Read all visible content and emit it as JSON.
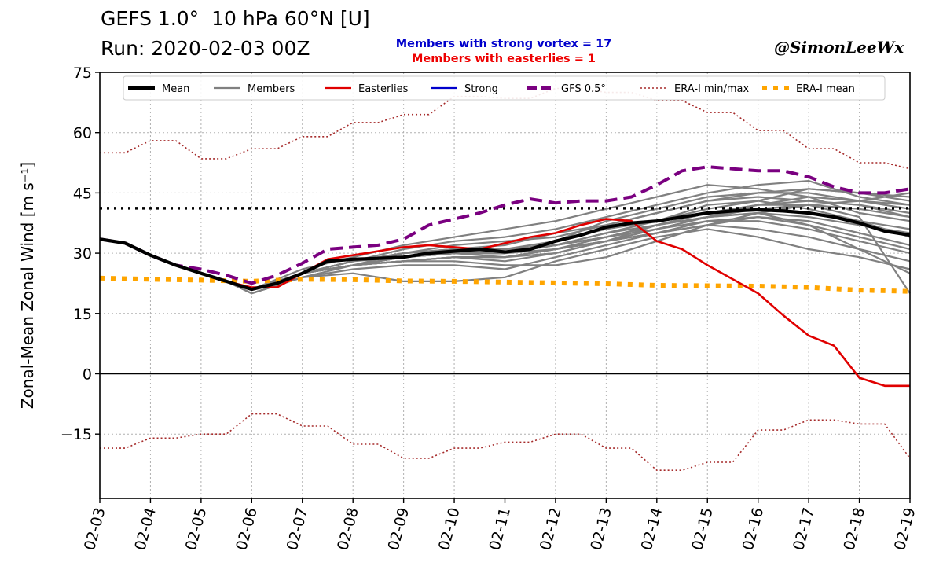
{
  "header": {
    "title_line1": "GEFS 1.0°  10 hPa 60°N [U]",
    "title_line2": "Run: 2020-02-03 00Z",
    "subtitle_strong": "Members with strong vortex = 17",
    "subtitle_easterlies": "Members with easterlies = 1",
    "credit": "@SimonLeeWx"
  },
  "colors": {
    "mean": "#000000",
    "members": "#808080",
    "easterlies": "#e00000",
    "strong": "#0000cc",
    "gfs": "#7a0080",
    "era_minmax": "#a52a2a",
    "era_mean": "#ffa500",
    "threshold": "#000000"
  },
  "chart_data": {
    "type": "line",
    "xlabel": "",
    "ylabel": "Zonal-Mean Zonal Wind [m s⁻¹]",
    "ylim": [
      -31,
      75
    ],
    "xlim": [
      0,
      16
    ],
    "yticks": [
      -15,
      0,
      15,
      30,
      45,
      60,
      75
    ],
    "ytick_labels": [
      "−15",
      "0",
      "15",
      "30",
      "45",
      "60",
      "75"
    ],
    "categories": [
      "02-03",
      "02-04",
      "02-05",
      "02-06",
      "02-07",
      "02-08",
      "02-09",
      "02-10",
      "02-11",
      "02-12",
      "02-13",
      "02-14",
      "02-15",
      "02-16",
      "02-17",
      "02-18",
      "02-19"
    ],
    "grid": true,
    "legend_position": "top",
    "threshold": 41.2,
    "legend": [
      {
        "key": "mean",
        "label": "Mean",
        "style": "solid-thick"
      },
      {
        "key": "members",
        "label": "Members",
        "style": "solid"
      },
      {
        "key": "easterlies",
        "label": "Easterlies",
        "style": "solid"
      },
      {
        "key": "strong",
        "label": "Strong",
        "style": "solid"
      },
      {
        "key": "gfs",
        "label": "GFS 0.5°",
        "style": "dashed"
      },
      {
        "key": "era_minmax",
        "label": "ERA-I min/max",
        "style": "dotted"
      },
      {
        "key": "era_mean",
        "label": "ERA-I mean",
        "style": "dotted-thick"
      }
    ],
    "series": [
      {
        "name": "Mean",
        "key": "mean",
        "x": [
          0,
          0.5,
          1,
          1.5,
          2,
          2.5,
          3,
          3.5,
          4,
          4.5,
          5,
          5.5,
          6,
          6.5,
          7,
          7.5,
          8,
          8.5,
          9,
          9.5,
          10,
          10.5,
          11,
          11.5,
          12,
          12.5,
          13,
          13.5,
          14,
          14.5,
          15,
          15.5,
          16
        ],
        "values": [
          33.5,
          32.5,
          29.5,
          27.0,
          25.0,
          23.0,
          21.0,
          22.5,
          25.0,
          28.0,
          28.5,
          28.7,
          29.0,
          30.0,
          30.5,
          31.0,
          30.3,
          31.0,
          33.0,
          34.5,
          36.5,
          37.5,
          38.0,
          39.0,
          40.0,
          40.5,
          40.8,
          40.5,
          40.0,
          39.0,
          37.5,
          35.5,
          34.5
        ]
      },
      {
        "name": "Easterlies",
        "key": "easterlies",
        "x": [
          0,
          0.5,
          1,
          1.5,
          2,
          2.5,
          3,
          3.5,
          4,
          4.5,
          5,
          5.5,
          6,
          6.5,
          7,
          7.5,
          8,
          8.5,
          9,
          9.5,
          10,
          10.5,
          11,
          11.5,
          12,
          12.5,
          13,
          13.5,
          14,
          14.5,
          15,
          15.5,
          16
        ],
        "values": [
          33.5,
          32.5,
          29.5,
          27.0,
          25.0,
          23.0,
          21.5,
          21.5,
          25.0,
          28.5,
          29.5,
          30.5,
          31.5,
          32.0,
          31.5,
          31.0,
          32.5,
          34.0,
          35.0,
          37.0,
          38.5,
          38.0,
          33.0,
          31.0,
          27.0,
          23.5,
          20.0,
          14.5,
          9.5,
          7.0,
          -1.0,
          -3.0,
          -3.0
        ]
      },
      {
        "name": "GFS 0.5°",
        "key": "gfs",
        "x": [
          0,
          0.5,
          1,
          1.5,
          2,
          2.5,
          3,
          3.5,
          4,
          4.5,
          5,
          5.5,
          6,
          6.5,
          7,
          7.5,
          8,
          8.5,
          9,
          9.5,
          10,
          10.5,
          11,
          11.5,
          12,
          12.5,
          13,
          13.5,
          14,
          14.5,
          15,
          15.5,
          16
        ],
        "values": [
          33.5,
          32.5,
          29.5,
          27.0,
          26.0,
          24.5,
          22.5,
          24.5,
          27.5,
          31.0,
          31.5,
          32.0,
          33.5,
          37.0,
          38.5,
          40.0,
          42.0,
          43.5,
          42.5,
          43.0,
          43.0,
          44.0,
          47.0,
          50.5,
          51.5,
          51.0,
          50.5,
          50.5,
          49.0,
          46.5,
          45.0,
          45.0,
          46.0
        ]
      },
      {
        "name": "ERA-I max",
        "key": "era_minmax",
        "x": [
          0,
          0.5,
          1,
          1.5,
          2,
          2.5,
          3,
          3.5,
          4,
          4.5,
          5,
          5.5,
          6,
          6.5,
          7,
          7.5,
          8,
          8.5,
          9,
          9.5,
          10,
          10.5,
          11,
          11.5,
          12,
          12.5,
          13,
          13.5,
          14,
          14.5,
          15,
          15.5,
          16
        ],
        "values": [
          55.0,
          55.0,
          58.0,
          58.0,
          53.5,
          53.5,
          56.0,
          56.0,
          59.0,
          59.0,
          62.5,
          62.5,
          64.5,
          64.5,
          69.0,
          69.0,
          68.5,
          68.5,
          71.0,
          71.0,
          70.0,
          70.0,
          68.0,
          68.0,
          65.0,
          65.0,
          60.5,
          60.5,
          56.0,
          56.0,
          52.5,
          52.5,
          51.0
        ]
      },
      {
        "name": "ERA-I min",
        "key": "era_minmax",
        "x": [
          0,
          0.5,
          1,
          1.5,
          2,
          2.5,
          3,
          3.5,
          4,
          4.5,
          5,
          5.5,
          6,
          6.5,
          7,
          7.5,
          8,
          8.5,
          9,
          9.5,
          10,
          10.5,
          11,
          11.5,
          12,
          12.5,
          13,
          13.5,
          14,
          14.5,
          15,
          15.5,
          16
        ],
        "values": [
          -18.5,
          -18.5,
          -16.0,
          -16.0,
          -15.0,
          -15.0,
          -10.0,
          -10.0,
          -13.0,
          -13.0,
          -17.5,
          -17.5,
          -21.0,
          -21.0,
          -18.5,
          -18.5,
          -17.0,
          -17.0,
          -15.0,
          -15.0,
          -18.5,
          -18.5,
          -24.0,
          -24.0,
          -22.0,
          -22.0,
          -14.0,
          -14.0,
          -11.5,
          -11.5,
          -12.5,
          -12.5,
          -21.0
        ]
      },
      {
        "name": "ERA-I mean",
        "key": "era_mean",
        "x": [
          0,
          1,
          2,
          3,
          4,
          5,
          6,
          7,
          8,
          9,
          10,
          11,
          12,
          13,
          14,
          15,
          16
        ],
        "values": [
          23.8,
          23.5,
          23.3,
          23.0,
          23.5,
          23.4,
          23.1,
          23.0,
          22.8,
          22.6,
          22.4,
          22.0,
          21.9,
          21.8,
          21.5,
          20.8,
          20.5
        ]
      }
    ],
    "members": [
      {
        "x": [
          3,
          4,
          5,
          6,
          7,
          8,
          9,
          10,
          11,
          12,
          13,
          14,
          15,
          16
        ],
        "values": [
          21,
          25,
          27,
          29,
          31,
          31,
          33,
          38,
          41,
          44,
          45,
          46,
          45,
          44
        ]
      },
      {
        "x": [
          3,
          4,
          5,
          6,
          7,
          8,
          9,
          10,
          11,
          12,
          13,
          14,
          15,
          16
        ],
        "values": [
          21,
          25,
          28,
          30,
          31,
          30,
          33,
          36,
          38,
          42,
          43,
          41,
          38,
          34
        ]
      },
      {
        "x": [
          3,
          4,
          5,
          6,
          7,
          8,
          9,
          10,
          11,
          12,
          13,
          14,
          15,
          16
        ],
        "values": [
          21,
          25,
          27,
          29,
          30,
          30,
          32,
          35,
          37,
          40,
          41,
          40,
          38,
          36
        ]
      },
      {
        "x": [
          3,
          4,
          5,
          6,
          7,
          8,
          9,
          10,
          11,
          12,
          13,
          14,
          15,
          16
        ],
        "values": [
          20,
          24,
          27,
          28,
          29,
          28,
          30,
          33,
          36,
          38,
          38,
          36,
          33,
          30
        ]
      },
      {
        "x": [
          3,
          4,
          5,
          6,
          7,
          8,
          9,
          10,
          11,
          12,
          13,
          14,
          15,
          16
        ],
        "values": [
          20,
          24,
          26,
          27,
          27,
          26,
          29,
          32,
          35,
          37,
          36,
          34,
          31,
          28
        ]
      },
      {
        "x": [
          3,
          4,
          5,
          6,
          7,
          8,
          9,
          10,
          11,
          12,
          13,
          14,
          15,
          16
        ],
        "values": [
          20,
          24,
          25,
          23,
          23,
          24,
          28,
          31,
          34,
          36,
          34,
          31,
          29,
          26
        ]
      },
      {
        "x": [
          3,
          4,
          5,
          6,
          7,
          8,
          9,
          10,
          11,
          12,
          13,
          14,
          15,
          16
        ],
        "values": [
          21,
          26,
          29,
          32,
          34,
          36,
          38,
          41,
          44,
          47,
          46,
          44,
          40,
          38
        ]
      },
      {
        "x": [
          3,
          4,
          5,
          6,
          7,
          8,
          9,
          10,
          11,
          12,
          13,
          14,
          15,
          16
        ],
        "values": [
          21,
          25,
          28,
          31,
          33,
          34,
          36,
          39,
          42,
          45,
          47,
          48,
          44,
          42
        ]
      },
      {
        "x": [
          3,
          4,
          5,
          6,
          7,
          8,
          9,
          10,
          11,
          12,
          13,
          14,
          15,
          16
        ],
        "values": [
          21,
          25,
          27,
          30,
          31,
          32,
          35,
          37,
          40,
          43,
          44,
          43,
          42,
          40
        ]
      },
      {
        "x": [
          3,
          4,
          5,
          6,
          7,
          8,
          9,
          10,
          11,
          12,
          13,
          14,
          15,
          16
        ],
        "values": [
          21,
          25,
          27,
          28,
          29,
          29,
          31,
          34,
          36,
          39,
          40,
          39,
          37,
          35
        ]
      },
      {
        "x": [
          3,
          4,
          5,
          6,
          7,
          8,
          9,
          10,
          11,
          12,
          13,
          14,
          15,
          16
        ],
        "values": [
          21,
          25,
          27,
          29,
          30,
          29,
          30,
          33,
          35,
          37,
          39,
          38,
          35,
          32
        ]
      },
      {
        "x": [
          3,
          4,
          5,
          6,
          7,
          8,
          9,
          10,
          11,
          12,
          13,
          14,
          15,
          16
        ],
        "values": [
          21,
          25,
          28,
          30,
          32,
          33,
          34,
          37,
          40,
          43,
          45,
          45,
          43,
          41
        ]
      },
      {
        "x": [
          3,
          4,
          5,
          6,
          7,
          8,
          9,
          10,
          11,
          12,
          13,
          14,
          15,
          16
        ],
        "values": [
          21,
          25,
          27,
          28,
          28,
          27,
          27,
          29,
          33,
          37,
          40,
          42,
          43,
          45
        ]
      },
      {
        "x": [
          3,
          4,
          5,
          6,
          7,
          8,
          9,
          10,
          11,
          12,
          13,
          14,
          15,
          16
        ],
        "values": [
          21,
          25,
          27,
          29,
          30,
          31,
          32,
          35,
          38,
          41,
          43,
          46,
          45,
          43
        ]
      },
      {
        "x": [
          3,
          4,
          5,
          6,
          7,
          8,
          9,
          10,
          11,
          12,
          13,
          14,
          15,
          16
        ],
        "values": [
          21,
          25,
          27,
          28,
          29,
          29,
          31,
          33,
          37,
          40,
          42,
          42,
          39,
          20
        ]
      },
      {
        "x": [
          3,
          4,
          5,
          6,
          7,
          8,
          9,
          10,
          11,
          12,
          13,
          14,
          15,
          16
        ],
        "values": [
          21,
          25,
          28,
          30,
          31,
          31,
          32,
          34,
          37,
          40,
          42,
          43,
          42,
          39
        ]
      },
      {
        "x": [
          3,
          4,
          5,
          6,
          7,
          8,
          9,
          10,
          11,
          12,
          13,
          14,
          15,
          16
        ],
        "values": [
          21,
          25,
          27,
          29,
          30,
          30,
          31,
          33,
          36,
          39,
          41,
          42,
          41,
          39
        ]
      },
      {
        "x": [
          3,
          4,
          5,
          6,
          7,
          8,
          9,
          10,
          11,
          12,
          13,
          14,
          15,
          16
        ],
        "values": [
          21,
          25,
          27,
          29,
          30,
          30,
          32,
          34,
          37,
          39,
          40,
          37,
          34,
          31
        ]
      },
      {
        "x": [
          3,
          4,
          5,
          6,
          7,
          8,
          9,
          10,
          11,
          12,
          13,
          14,
          15,
          16
        ],
        "values": [
          21,
          25,
          28,
          29,
          30,
          30,
          32,
          34,
          37,
          39,
          42,
          44,
          43,
          42
        ]
      },
      {
        "x": [
          3,
          4,
          5,
          6,
          7,
          8,
          9,
          10,
          11,
          12,
          13,
          14,
          15,
          16
        ],
        "values": [
          21,
          25,
          27,
          28,
          29,
          29,
          31,
          33,
          35,
          38,
          39,
          37,
          31,
          25
        ]
      }
    ]
  }
}
